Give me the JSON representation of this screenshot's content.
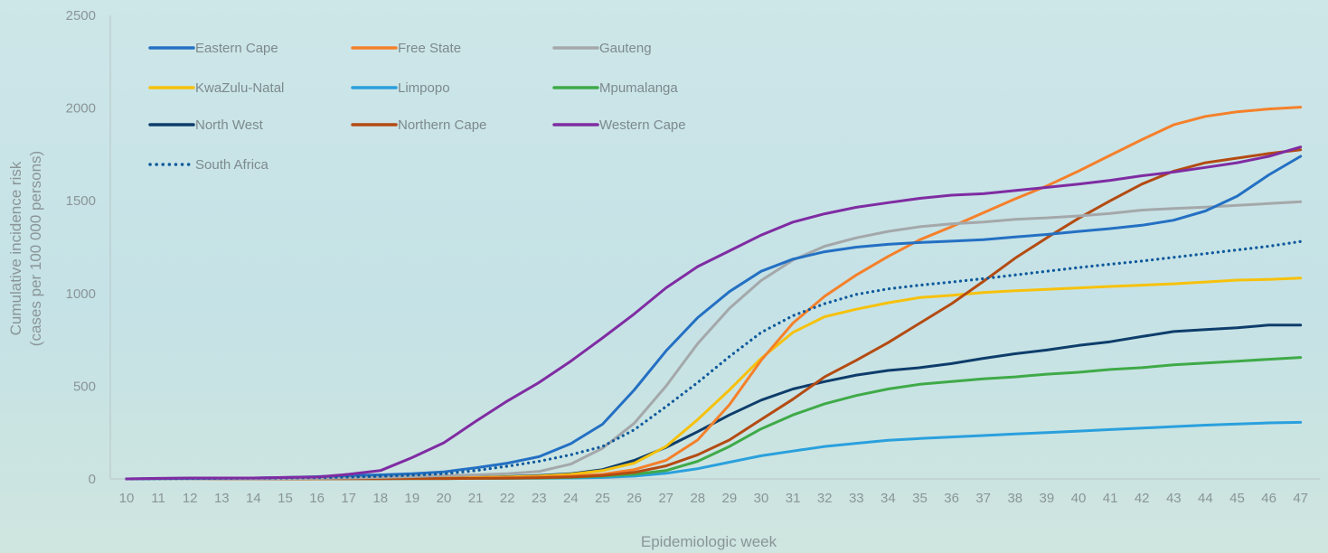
{
  "chart_data": {
    "type": "line",
    "xlabel": "Epidemiologic week",
    "ylabel": [
      "Cumulative  incidence risk",
      "(cases per 100 000 persons)"
    ],
    "ylim": [
      0,
      2500
    ],
    "yticks": [
      0,
      500,
      1000,
      1500,
      2000,
      2500
    ],
    "x": [
      10,
      11,
      12,
      13,
      14,
      15,
      16,
      17,
      18,
      19,
      20,
      21,
      22,
      23,
      24,
      25,
      26,
      27,
      28,
      29,
      30,
      31,
      32,
      33,
      34,
      35,
      36,
      37,
      38,
      39,
      40,
      41,
      42,
      43,
      44,
      45,
      46,
      47
    ],
    "grid": false,
    "legend_position": "top-left",
    "series": [
      {
        "name": "Eastern Cape",
        "color": "#2470c3",
        "style": "solid",
        "values": [
          0,
          2,
          3,
          4,
          5,
          8,
          12,
          18,
          22,
          28,
          38,
          60,
          85,
          120,
          190,
          295,
          480,
          690,
          870,
          1010,
          1120,
          1185,
          1225,
          1250,
          1265,
          1275,
          1282,
          1290,
          1305,
          1318,
          1335,
          1350,
          1368,
          1395,
          1445,
          1525,
          1640,
          1740
        ]
      },
      {
        "name": "Free State",
        "color": "#f5802a",
        "style": "solid",
        "values": [
          0,
          0,
          0,
          0,
          0,
          1,
          1,
          2,
          2,
          3,
          4,
          5,
          7,
          10,
          15,
          25,
          50,
          100,
          210,
          400,
          640,
          840,
          985,
          1100,
          1200,
          1290,
          1360,
          1435,
          1510,
          1580,
          1660,
          1745,
          1830,
          1910,
          1955,
          1980,
          1995,
          2005
        ]
      },
      {
        "name": "Gauteng",
        "color": "#a4a8aa",
        "style": "solid",
        "values": [
          0,
          0,
          0,
          1,
          1,
          2,
          3,
          5,
          8,
          12,
          18,
          22,
          28,
          40,
          80,
          165,
          300,
          500,
          730,
          920,
          1070,
          1180,
          1255,
          1300,
          1335,
          1360,
          1375,
          1385,
          1400,
          1408,
          1418,
          1432,
          1450,
          1458,
          1466,
          1475,
          1485,
          1495
        ]
      },
      {
        "name": "KwaZulu-Natal",
        "color": "#f6c10c",
        "style": "solid",
        "values": [
          0,
          0,
          0,
          0,
          0,
          1,
          1,
          2,
          3,
          4,
          5,
          8,
          10,
          15,
          25,
          45,
          85,
          175,
          320,
          480,
          650,
          790,
          875,
          915,
          950,
          978,
          990,
          1005,
          1015,
          1022,
          1030,
          1038,
          1045,
          1052,
          1062,
          1072,
          1076,
          1083
        ]
      },
      {
        "name": "Limpopo",
        "color": "#2aa0dd",
        "style": "solid",
        "values": [
          0,
          0,
          0,
          0,
          0,
          0,
          1,
          1,
          1,
          2,
          2,
          3,
          3,
          4,
          5,
          8,
          15,
          30,
          55,
          90,
          125,
          150,
          175,
          192,
          208,
          218,
          226,
          234,
          242,
          250,
          258,
          266,
          274,
          282,
          290,
          296,
          302,
          305
        ]
      },
      {
        "name": "Mpumalanga",
        "color": "#3faa48",
        "style": "solid",
        "values": [
          0,
          0,
          0,
          0,
          0,
          0,
          1,
          1,
          1,
          2,
          2,
          3,
          4,
          5,
          8,
          15,
          25,
          45,
          95,
          175,
          270,
          345,
          405,
          450,
          485,
          510,
          525,
          540,
          550,
          565,
          575,
          590,
          600,
          615,
          625,
          635,
          645,
          655
        ]
      },
      {
        "name": "North West",
        "color": "#0e3d6b",
        "style": "solid",
        "values": [
          0,
          0,
          0,
          0,
          0,
          1,
          1,
          2,
          3,
          5,
          7,
          9,
          12,
          18,
          28,
          50,
          100,
          170,
          255,
          345,
          425,
          485,
          525,
          560,
          585,
          600,
          622,
          650,
          675,
          695,
          720,
          740,
          768,
          795,
          805,
          815,
          830,
          830
        ]
      },
      {
        "name": "Northern Cape",
        "color": "#b44b12",
        "style": "solid",
        "values": [
          0,
          0,
          0,
          0,
          0,
          0,
          1,
          1,
          1,
          2,
          2,
          3,
          4,
          6,
          10,
          18,
          35,
          70,
          130,
          210,
          320,
          430,
          550,
          640,
          735,
          840,
          945,
          1065,
          1190,
          1300,
          1405,
          1500,
          1590,
          1660,
          1705,
          1730,
          1755,
          1775
        ]
      },
      {
        "name": "Western Cape",
        "color": "#7f2ca2",
        "style": "solid",
        "values": [
          0,
          3,
          5,
          5,
          5,
          8,
          10,
          25,
          45,
          115,
          195,
          310,
          420,
          520,
          635,
          760,
          890,
          1030,
          1145,
          1230,
          1315,
          1385,
          1430,
          1465,
          1490,
          1513,
          1530,
          1538,
          1555,
          1572,
          1590,
          1610,
          1635,
          1655,
          1680,
          1705,
          1740,
          1790
        ]
      },
      {
        "name": "South Africa",
        "color": "#0f5a9c",
        "style": "dotted",
        "values": [
          0,
          1,
          2,
          3,
          4,
          5,
          7,
          10,
          14,
          20,
          28,
          45,
          68,
          95,
          130,
          175,
          265,
          390,
          520,
          660,
          790,
          880,
          945,
          995,
          1025,
          1045,
          1062,
          1080,
          1100,
          1120,
          1140,
          1158,
          1175,
          1195,
          1215,
          1235,
          1255,
          1280
        ]
      }
    ]
  }
}
